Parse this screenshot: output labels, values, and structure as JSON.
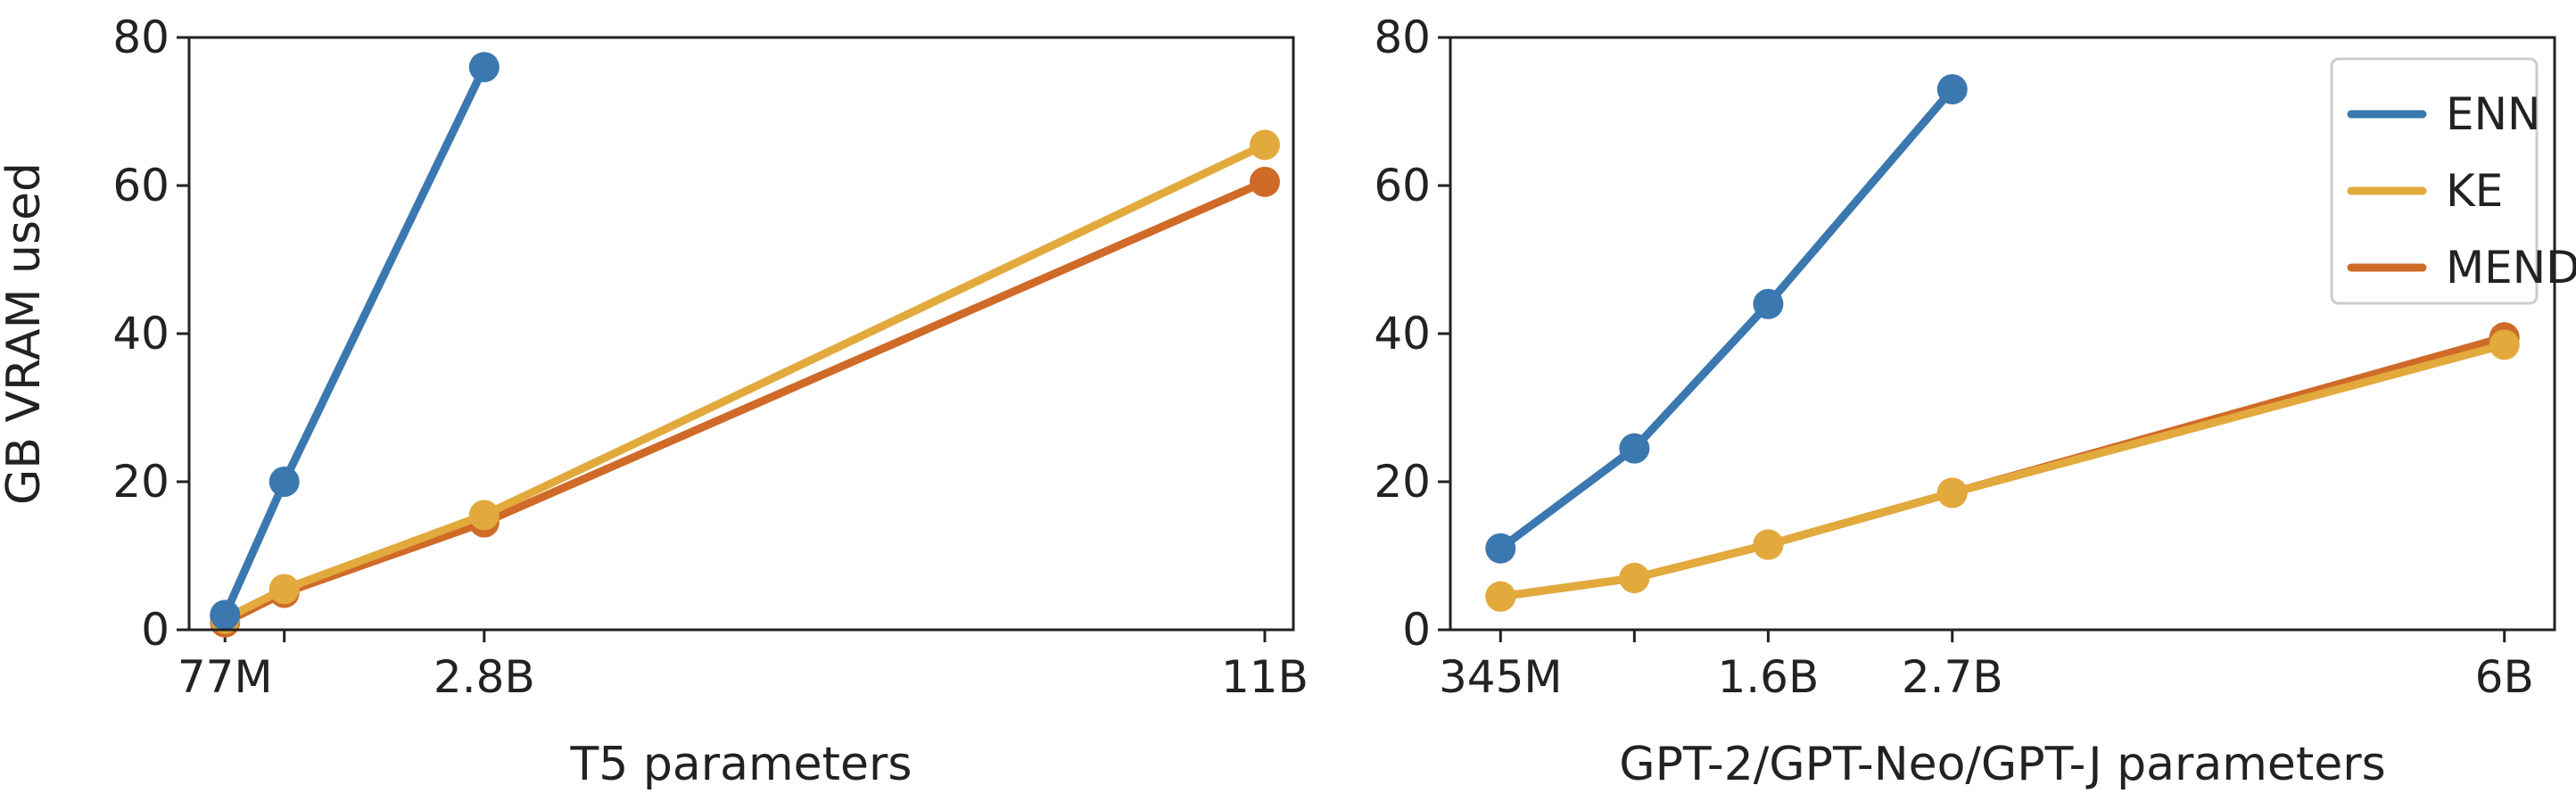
{
  "chart_data": [
    {
      "type": "line",
      "title": "",
      "xlabel": "T5 parameters",
      "ylabel": "GB VRAM used",
      "ylim": [
        0,
        80
      ],
      "yticks": [
        0,
        20,
        40,
        60,
        80
      ],
      "xlim": [
        -0.3,
        11.3
      ],
      "xticks": [
        {
          "value": 0.077,
          "label": "77M"
        },
        {
          "value": 2.8,
          "label": "2.8B"
        },
        {
          "value": 11,
          "label": "11B"
        }
      ],
      "minor_xticks": [
        0.7
      ],
      "series": [
        {
          "name": "ENN",
          "x": [
            0.077,
            0.7,
            2.8
          ],
          "y": [
            2,
            20,
            76
          ]
        },
        {
          "name": "KE",
          "x": [
            0.077,
            0.7,
            2.8,
            11
          ],
          "y": [
            1.5,
            5.5,
            15.5,
            65.5
          ]
        },
        {
          "name": "MEND",
          "x": [
            0.077,
            0.7,
            2.8,
            11
          ],
          "y": [
            1,
            5,
            14.5,
            60.5
          ]
        }
      ],
      "legend": null
    },
    {
      "type": "line",
      "title": "",
      "xlabel": "GPT-2/GPT-Neo/GPT-J parameters",
      "ylabel": "",
      "ylim": [
        0,
        80
      ],
      "yticks": [
        0,
        20,
        40,
        60,
        80
      ],
      "xlim": [
        -0.3,
        6.3
      ],
      "xticks": [
        {
          "value": 0.0,
          "label": "345M"
        },
        {
          "value": 1.6,
          "label": "1.6B"
        },
        {
          "value": 2.7,
          "label": "2.7B"
        },
        {
          "value": 6.0,
          "label": "6B"
        }
      ],
      "minor_xticks": [
        0.8
      ],
      "series": [
        {
          "name": "ENN",
          "x": [
            0.0,
            0.8,
            1.6,
            2.7
          ],
          "y": [
            11,
            24.5,
            44,
            73
          ]
        },
        {
          "name": "KE",
          "x": [
            0.0,
            0.8,
            1.6,
            2.7,
            6.0
          ],
          "y": [
            4.5,
            7,
            11.5,
            18.5,
            38.5
          ]
        },
        {
          "name": "MEND",
          "x": [
            0.0,
            0.8,
            1.6,
            2.7,
            6.0
          ],
          "y": [
            4.5,
            7,
            11.5,
            18.5,
            39.5
          ]
        }
      ],
      "legend": {
        "position": "top-right",
        "entries": [
          "ENN",
          "KE",
          "MEND"
        ]
      }
    }
  ],
  "colors": {
    "ENN": "#3b78b0",
    "KE": "#e2a93c",
    "MEND": "#cf6a28",
    "axis": "#222222"
  }
}
